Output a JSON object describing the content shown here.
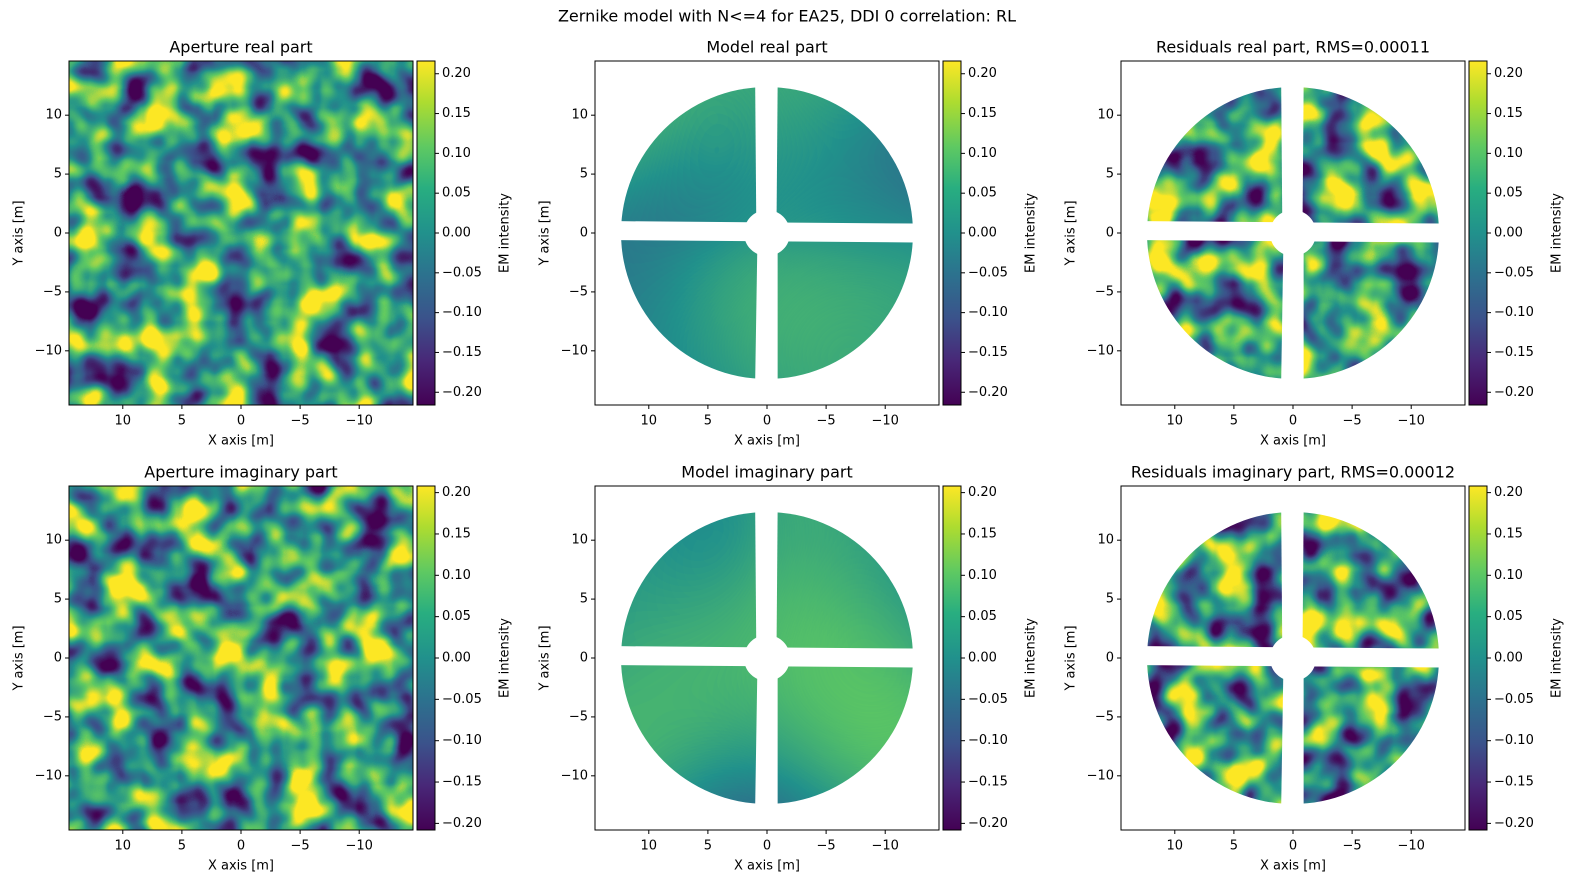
{
  "title": "Zernike model with N<=4 for EA25, DDI 0 correlation: RL",
  "chart_data": [
    {
      "type": "heatmap",
      "title": "Aperture real part",
      "xlabel": "X axis [m]",
      "ylabel": "Y axis [m]",
      "cmap": "viridis",
      "mask": "none",
      "xlim": [
        14.55,
        -14.55
      ],
      "ylim": [
        -14.6,
        14.6
      ],
      "xticks": [
        10,
        5,
        0,
        {
          "value": -5,
          "label": "−5"
        },
        {
          "value": -10,
          "label": "−10"
        }
      ],
      "yticks": [
        {
          "value": -10,
          "label": "−10"
        },
        {
          "value": -5,
          "label": "−5"
        },
        0,
        5,
        10
      ],
      "colorbar": {
        "label": "EM intensity",
        "lim": [
          -0.216,
          0.216
        ],
        "ticks": [
          {
            "value": -0.2,
            "label": "−0.20"
          },
          {
            "value": -0.15,
            "label": "−0.15"
          },
          {
            "value": -0.1,
            "label": "−0.10"
          },
          {
            "value": -0.05,
            "label": "−0.05"
          },
          {
            "value": 0,
            "label": "0.00"
          },
          0.05,
          {
            "value": 0.1,
            "label": "0.10"
          },
          0.15,
          {
            "value": 0.2,
            "label": "0.20"
          }
        ]
      }
    },
    {
      "type": "heatmap",
      "title": "Model real part",
      "xlabel": "X axis [m]",
      "ylabel": "Y axis [m]",
      "cmap": "viridis",
      "mask": "aperture",
      "xlim": [
        14.55,
        -14.55
      ],
      "ylim": [
        -14.6,
        14.6
      ],
      "xticks": [
        10,
        5,
        0,
        {
          "value": -5,
          "label": "−5"
        },
        {
          "value": -10,
          "label": "−10"
        }
      ],
      "yticks": [
        {
          "value": -10,
          "label": "−10"
        },
        {
          "value": -5,
          "label": "−5"
        },
        0,
        5,
        10
      ],
      "colorbar": {
        "label": "EM intensity",
        "lim": [
          -0.216,
          0.216
        ],
        "ticks": [
          {
            "value": -0.2,
            "label": "−0.20"
          },
          {
            "value": -0.15,
            "label": "−0.15"
          },
          {
            "value": -0.1,
            "label": "−0.10"
          },
          {
            "value": -0.05,
            "label": "−0.05"
          },
          {
            "value": 0,
            "label": "0.00"
          },
          0.05,
          {
            "value": 0.1,
            "label": "0.10"
          },
          0.15,
          {
            "value": 0.2,
            "label": "0.20"
          }
        ]
      }
    },
    {
      "type": "heatmap",
      "title": "Residuals real part, RMS=0.00011",
      "xlabel": "X axis [m]",
      "ylabel": "Y axis [m]",
      "cmap": "viridis",
      "mask": "aperture",
      "xlim": [
        14.55,
        -14.55
      ],
      "ylim": [
        -14.6,
        14.6
      ],
      "xticks": [
        10,
        5,
        0,
        {
          "value": -5,
          "label": "−5"
        },
        {
          "value": -10,
          "label": "−10"
        }
      ],
      "yticks": [
        {
          "value": -10,
          "label": "−10"
        },
        {
          "value": -5,
          "label": "−5"
        },
        0,
        5,
        10
      ],
      "colorbar": {
        "label": "EM intensity",
        "lim": [
          -0.216,
          0.216
        ],
        "ticks": [
          {
            "value": -0.2,
            "label": "−0.20"
          },
          {
            "value": -0.15,
            "label": "−0.15"
          },
          {
            "value": -0.1,
            "label": "−0.10"
          },
          {
            "value": -0.05,
            "label": "−0.05"
          },
          {
            "value": 0,
            "label": "0.00"
          },
          0.05,
          {
            "value": 0.1,
            "label": "0.10"
          },
          0.15,
          {
            "value": 0.2,
            "label": "0.20"
          }
        ]
      }
    },
    {
      "type": "heatmap",
      "title": "Aperture imaginary part",
      "xlabel": "X axis [m]",
      "ylabel": "Y axis [m]",
      "cmap": "viridis",
      "mask": "none",
      "xlim": [
        14.55,
        -14.55
      ],
      "ylim": [
        -14.6,
        14.6
      ],
      "xticks": [
        10,
        5,
        0,
        {
          "value": -5,
          "label": "−5"
        },
        {
          "value": -10,
          "label": "−10"
        }
      ],
      "yticks": [
        {
          "value": -10,
          "label": "−10"
        },
        {
          "value": -5,
          "label": "−5"
        },
        0,
        5,
        10
      ],
      "colorbar": {
        "label": "EM intensity",
        "lim": [
          -0.208,
          0.208
        ],
        "ticks": [
          {
            "value": -0.2,
            "label": "−0.20"
          },
          {
            "value": -0.15,
            "label": "−0.15"
          },
          {
            "value": -0.1,
            "label": "−0.10"
          },
          {
            "value": -0.05,
            "label": "−0.05"
          },
          {
            "value": 0,
            "label": "0.00"
          },
          0.05,
          {
            "value": 0.1,
            "label": "0.10"
          },
          0.15,
          {
            "value": 0.2,
            "label": "0.20"
          }
        ]
      }
    },
    {
      "type": "heatmap",
      "title": "Model imaginary part",
      "xlabel": "X axis [m]",
      "ylabel": "Y axis [m]",
      "cmap": "viridis",
      "mask": "aperture",
      "xlim": [
        14.55,
        -14.55
      ],
      "ylim": [
        -14.6,
        14.6
      ],
      "xticks": [
        10,
        5,
        0,
        {
          "value": -5,
          "label": "−5"
        },
        {
          "value": -10,
          "label": "−10"
        }
      ],
      "yticks": [
        {
          "value": -10,
          "label": "−10"
        },
        {
          "value": -5,
          "label": "−5"
        },
        0,
        5,
        10
      ],
      "colorbar": {
        "label": "EM intensity",
        "lim": [
          -0.208,
          0.208
        ],
        "ticks": [
          {
            "value": -0.2,
            "label": "−0.20"
          },
          {
            "value": -0.15,
            "label": "−0.15"
          },
          {
            "value": -0.1,
            "label": "−0.10"
          },
          {
            "value": -0.05,
            "label": "−0.05"
          },
          {
            "value": 0,
            "label": "0.00"
          },
          0.05,
          {
            "value": 0.1,
            "label": "0.10"
          },
          0.15,
          {
            "value": 0.2,
            "label": "0.20"
          }
        ]
      }
    },
    {
      "type": "heatmap",
      "title": "Residuals imaginary part, RMS=0.00012",
      "xlabel": "X axis [m]",
      "ylabel": "Y axis [m]",
      "cmap": "viridis",
      "mask": "aperture",
      "xlim": [
        14.55,
        -14.55
      ],
      "ylim": [
        -14.6,
        14.6
      ],
      "xticks": [
        10,
        5,
        0,
        {
          "value": -5,
          "label": "−5"
        },
        {
          "value": -10,
          "label": "−10"
        }
      ],
      "yticks": [
        {
          "value": -10,
          "label": "−10"
        },
        {
          "value": -5,
          "label": "−5"
        },
        0,
        5,
        10
      ],
      "colorbar": {
        "label": "EM intensity",
        "lim": [
          -0.208,
          0.208
        ],
        "ticks": [
          {
            "value": -0.2,
            "label": "−0.20"
          },
          {
            "value": -0.15,
            "label": "−0.15"
          },
          {
            "value": -0.1,
            "label": "−0.10"
          },
          {
            "value": -0.05,
            "label": "−0.05"
          },
          {
            "value": 0,
            "label": "0.00"
          },
          0.05,
          {
            "value": 0.1,
            "label": "0.10"
          },
          0.15,
          {
            "value": 0.2,
            "label": "0.20"
          }
        ]
      }
    }
  ]
}
